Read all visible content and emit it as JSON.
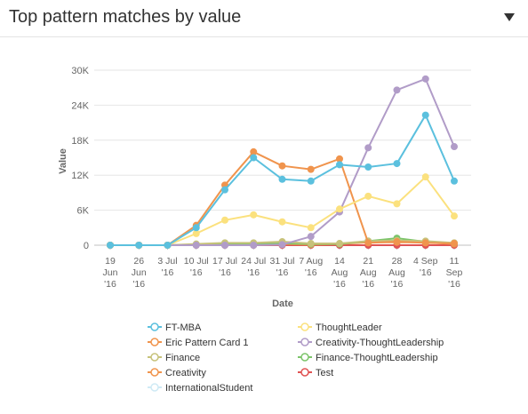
{
  "header": {
    "title": "Top pattern matches by value",
    "menu_icon": "dropdown-triangle-icon"
  },
  "chart_data": {
    "type": "line",
    "title": "",
    "xlabel": "Date",
    "ylabel": "Value",
    "ylim": [
      0,
      30000
    ],
    "yticks": [
      0,
      6000,
      12000,
      18000,
      24000,
      30000
    ],
    "ytick_labels": [
      "0",
      "6K",
      "12K",
      "18K",
      "24K",
      "30K"
    ],
    "categories": [
      [
        "19",
        "Jun",
        "'16"
      ],
      [
        "26",
        "Jun",
        "'16"
      ],
      [
        "3 Jul",
        "'16"
      ],
      [
        "10 Jul",
        "'16"
      ],
      [
        "17 Jul",
        "'16"
      ],
      [
        "24 Jul",
        "'16"
      ],
      [
        "31 Jul",
        "'16"
      ],
      [
        "7 Aug",
        "'16"
      ],
      [
        "14",
        "Aug",
        "'16"
      ],
      [
        "21",
        "Aug",
        "'16"
      ],
      [
        "28",
        "Aug",
        "'16"
      ],
      [
        "4 Sep",
        "'16"
      ],
      [
        "11",
        "Sep",
        "'16"
      ]
    ],
    "grid": true,
    "legend_position": "bottom",
    "series": [
      {
        "name": "FT-MBA",
        "color": "#5bc0de",
        "values": [
          0,
          0,
          0,
          3000,
          9500,
          15000,
          11300,
          11000,
          13800,
          13400,
          14000,
          22300,
          11000
        ]
      },
      {
        "name": "ThoughtLeader",
        "color": "#fbe17e",
        "values": [
          0,
          0,
          0,
          2000,
          4300,
          5200,
          4000,
          3000,
          6200,
          8400,
          7100,
          11700,
          5000
        ]
      },
      {
        "name": "Eric Pattern Card 1",
        "color": "#f0944d",
        "values": [
          0,
          0,
          0,
          3400,
          10300,
          16000,
          13600,
          13000,
          14800,
          400,
          600,
          400,
          300
        ]
      },
      {
        "name": "Creativity-ThoughtLeadership",
        "color": "#b19cc8",
        "values": [
          0,
          0,
          0,
          0,
          0,
          0,
          100,
          1500,
          5700,
          16700,
          26600,
          28500,
          16900
        ]
      },
      {
        "name": "Finance",
        "color": "#c7c27a",
        "values": [
          0,
          0,
          0,
          200,
          400,
          400,
          600,
          300,
          300,
          700,
          800,
          700,
          400
        ]
      },
      {
        "name": "Finance-ThoughtLeadership",
        "color": "#7cc46a",
        "values": [
          0,
          0,
          0,
          100,
          200,
          200,
          300,
          200,
          200,
          700,
          1200,
          600,
          300
        ]
      },
      {
        "name": "Creativity",
        "color": "#f0944d",
        "values": [
          0,
          0,
          0,
          100,
          200,
          200,
          200,
          100,
          200,
          500,
          500,
          500,
          200
        ]
      },
      {
        "name": "Test",
        "color": "#e05353",
        "values": [
          0,
          0,
          0,
          0,
          0,
          0,
          0,
          0,
          0,
          0,
          0,
          0,
          0
        ]
      },
      {
        "name": "InternationalStudent",
        "color": "#cfeaf5",
        "values": [
          0,
          0,
          0,
          0,
          0,
          0,
          0,
          0,
          0,
          0,
          0,
          0,
          0
        ]
      }
    ]
  }
}
